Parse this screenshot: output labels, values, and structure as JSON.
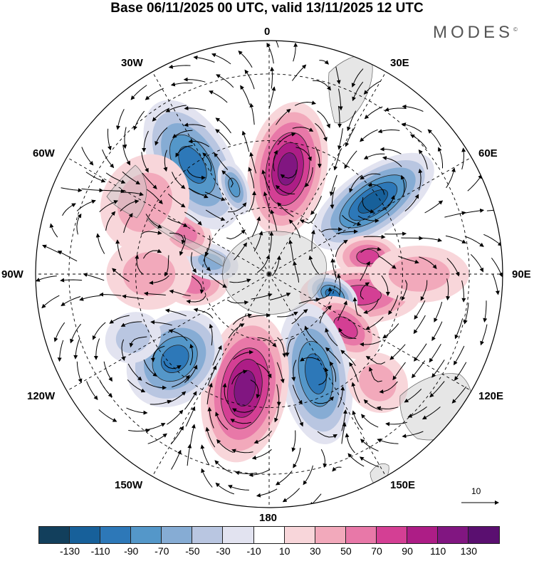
{
  "title": "Base 06/11/2025 00 UTC, valid 13/11/2025 12 UTC",
  "brand": "MODES",
  "brand_mark": "©",
  "longitude_labels": {
    "lon_0": "0",
    "lon_30e": "30E",
    "lon_60e": "60E",
    "lon_90e": "90E",
    "lon_120e": "120E",
    "lon_150e": "150E",
    "lon_180": "180",
    "lon_150w": "150W",
    "lon_120w": "120W",
    "lon_90w": "90W",
    "lon_60w": "60W",
    "lon_30w": "30W"
  },
  "vector_scale": {
    "label": "10"
  },
  "colorbar": {
    "tick_labels": [
      "-130",
      "-110",
      "-90",
      "-70",
      "-50",
      "-30",
      "-10",
      "10",
      "30",
      "50",
      "70",
      "90",
      "110",
      "130"
    ],
    "colors": [
      "#123f5c",
      "#17609a",
      "#2d78b8",
      "#5497c9",
      "#86acd4",
      "#b9c6e1",
      "#e2e3f0",
      "#ffffff",
      "#f8d6da",
      "#f2a9bb",
      "#e878a8",
      "#d43f94",
      "#ad1d86",
      "#811681",
      "#5a0f70"
    ]
  },
  "anomalies": [
    {
      "lon": 10,
      "colat": 32,
      "value": 110,
      "rx": 55,
      "ry": 95,
      "rot": 10
    },
    {
      "lon": 55,
      "colat": 38,
      "value": -110,
      "rx": 45,
      "ry": 100,
      "rot": 55
    },
    {
      "lon": 80,
      "colat": 30,
      "value": 70,
      "rx": 30,
      "ry": 45,
      "rot": 90
    },
    {
      "lon": 103,
      "colat": 28,
      "value": 80,
      "rx": 40,
      "ry": 85,
      "rot": 90
    },
    {
      "lon": 108,
      "colat": 20,
      "value": -90,
      "rx": 25,
      "ry": 38,
      "rot": 120
    },
    {
      "lon": 125,
      "colat": 28,
      "value": 70,
      "rx": 35,
      "ry": 55,
      "rot": 130
    },
    {
      "lon": 155,
      "colat": 33,
      "value": -90,
      "rx": 50,
      "ry": 100,
      "rot": 170
    },
    {
      "lon": 192,
      "colat": 35,
      "value": 120,
      "rx": 60,
      "ry": 105,
      "rot": 190
    },
    {
      "lon": 228,
      "colat": 38,
      "value": -100,
      "rx": 60,
      "ry": 75,
      "rot": 225
    },
    {
      "lon": 262,
      "colat": 22,
      "value": 50,
      "rx": 30,
      "ry": 45,
      "rot": 265
    },
    {
      "lon": 282,
      "colat": 18,
      "value": -60,
      "rx": 25,
      "ry": 40,
      "rot": 285
    },
    {
      "lon": 296,
      "colat": 28,
      "value": 50,
      "rx": 30,
      "ry": 40,
      "rot": 300
    },
    {
      "lon": 325,
      "colat": 40,
      "value": -100,
      "rx": 55,
      "ry": 100,
      "rot": 330
    },
    {
      "lon": 338,
      "colat": 28,
      "value": -80,
      "rx": 20,
      "ry": 40,
      "rot": 340
    },
    {
      "lon": 300,
      "colat": 43,
      "value": 30,
      "rx": 70,
      "ry": 60,
      "rot": 300
    },
    {
      "lon": 270,
      "colat": 36,
      "value": 30,
      "rx": 50,
      "ry": 60,
      "rot": 270
    },
    {
      "lon": 245,
      "colat": 45,
      "value": -30,
      "rx": 35,
      "ry": 40,
      "rot": 245
    },
    {
      "lon": 135,
      "colat": 46,
      "value": 30,
      "rx": 40,
      "ry": 45,
      "rot": 135
    },
    {
      "lon": 90,
      "colat": 45,
      "value": 30,
      "rx": 40,
      "ry": 70,
      "rot": 90
    }
  ]
}
